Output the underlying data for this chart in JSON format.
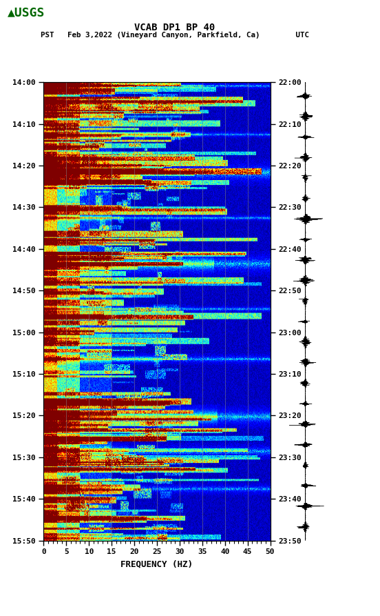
{
  "title_line1": "VCAB DP1 BP 40",
  "title_line2": "PST   Feb 3,2022 (Vineyard Canyon, Parkfield, Ca)        UTC",
  "xlabel": "FREQUENCY (HZ)",
  "freq_min": 0,
  "freq_max": 50,
  "pst_ticks": [
    "14:00",
    "14:10",
    "14:20",
    "14:30",
    "14:40",
    "14:50",
    "15:00",
    "15:10",
    "15:20",
    "15:30",
    "15:40",
    "15:50"
  ],
  "utc_ticks": [
    "22:00",
    "22:10",
    "22:20",
    "22:30",
    "22:40",
    "22:50",
    "23:00",
    "23:10",
    "23:20",
    "23:30",
    "23:40",
    "23:50"
  ],
  "freq_ticks": [
    0,
    5,
    10,
    15,
    20,
    25,
    30,
    35,
    40,
    45,
    50
  ],
  "background_color": "#ffffff",
  "grid_color": "#888888",
  "grid_alpha": 0.6,
  "title_fontsize": 10,
  "tick_fontsize": 8,
  "label_fontsize": 9,
  "usgs_color": "#006600",
  "n_time": 660,
  "n_freq": 330
}
